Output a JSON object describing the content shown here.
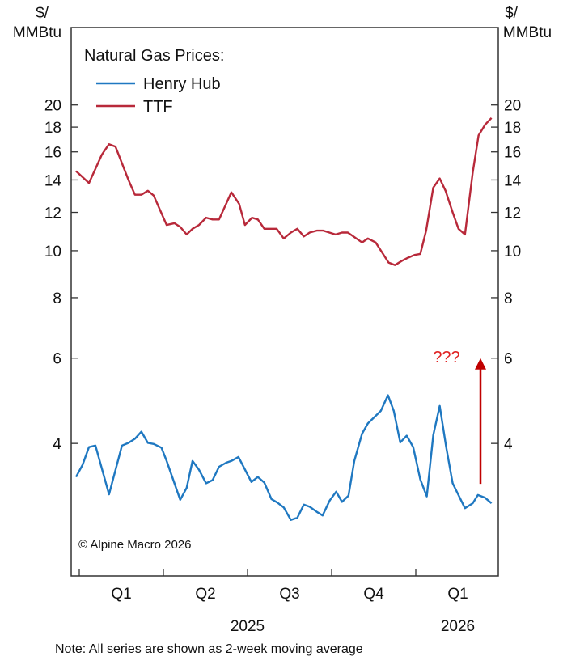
{
  "chart_data": {
    "type": "line",
    "title": "Natural Gas Prices:",
    "ylabel_left": [
      "$/",
      "MMBtu"
    ],
    "ylabel_right": [
      "$/",
      "MMBtu"
    ],
    "yscale": "log",
    "ylim": [
      2.13,
      28.9
    ],
    "yticks": [
      4,
      6,
      8,
      10,
      12,
      14,
      16,
      18,
      20
    ],
    "xunit": "weeks since 2025-01-01",
    "xlim": [
      -1.25,
      64.75
    ],
    "quarter_boundaries": [
      0,
      13,
      26,
      39,
      52
    ],
    "quarter_labels": [
      {
        "label": "Q1",
        "center": 6.5
      },
      {
        "label": "Q2",
        "center": 19.5
      },
      {
        "label": "Q3",
        "center": 32.5
      },
      {
        "label": "Q4",
        "center": 45.5
      },
      {
        "label": "Q1",
        "center": 58.5
      }
    ],
    "year_labels": [
      {
        "label": "2025",
        "center": 26
      },
      {
        "label": "2026",
        "center": 58.5
      }
    ],
    "series": [
      {
        "name": "Henry Hub",
        "color": "#1f78c1",
        "x": [
          -0.5,
          0.5,
          1.5,
          2.5,
          4.6,
          6.6,
          7.6,
          8.6,
          9.6,
          10.6,
          11.5,
          12.7,
          13.5,
          15.6,
          16.6,
          17.5,
          18.5,
          19.6,
          20.6,
          21.6,
          22.7,
          23.5,
          24.6,
          26.6,
          27.6,
          28.6,
          29.7,
          30.6,
          31.6,
          32.7,
          33.7,
          34.7,
          35.6,
          36.7,
          37.6,
          38.7,
          39.7,
          40.6,
          41.6,
          42.5,
          43.7,
          44.6,
          46.6,
          47.7,
          48.6,
          49.6,
          50.6,
          51.6,
          52.7,
          53.7,
          54.7,
          55.7,
          56.7,
          57.7,
          59.6,
          60.8,
          61.6,
          62.7,
          63.7
        ],
        "values": [
          3.41,
          3.61,
          3.93,
          3.96,
          3.14,
          3.96,
          4.01,
          4.09,
          4.23,
          4.01,
          3.99,
          3.92,
          3.68,
          3.06,
          3.24,
          3.68,
          3.53,
          3.31,
          3.36,
          3.58,
          3.65,
          3.68,
          3.75,
          3.33,
          3.41,
          3.32,
          3.07,
          3.02,
          2.95,
          2.78,
          2.81,
          2.99,
          2.96,
          2.89,
          2.84,
          3.05,
          3.18,
          3.03,
          3.12,
          3.68,
          4.19,
          4.4,
          4.67,
          5.03,
          4.67,
          4.02,
          4.15,
          3.93,
          3.37,
          3.11,
          4.16,
          4.78,
          3.93,
          3.31,
          2.94,
          3.01,
          3.13,
          3.09,
          3.01
        ]
      },
      {
        "name": "TTF",
        "color": "#b8293a",
        "x": [
          -0.5,
          1.5,
          3.5,
          4.6,
          5.6,
          7.6,
          8.6,
          9.6,
          10.6,
          11.5,
          13.5,
          14.7,
          15.6,
          16.6,
          17.5,
          18.5,
          19.6,
          20.6,
          21.6,
          23.5,
          24.7,
          25.6,
          26.7,
          27.6,
          28.6,
          30.5,
          31.6,
          32.7,
          33.7,
          34.7,
          35.6,
          36.7,
          37.7,
          39.6,
          40.6,
          41.5,
          43.7,
          44.6,
          45.8,
          47.8,
          48.8,
          49.8,
          50.8,
          51.8,
          52.7,
          53.6,
          54.7,
          55.7,
          56.6,
          57.7,
          58.6,
          59.6,
          60.8,
          61.7,
          62.7,
          63.7
        ],
        "values": [
          14.6,
          13.8,
          15.8,
          16.6,
          16.4,
          14.0,
          13.05,
          13.05,
          13.3,
          13.0,
          11.3,
          11.4,
          11.2,
          10.8,
          11.1,
          11.3,
          11.7,
          11.6,
          11.6,
          13.2,
          12.5,
          11.3,
          11.7,
          11.6,
          11.1,
          11.1,
          10.6,
          10.9,
          11.1,
          10.7,
          10.9,
          11.0,
          11.0,
          10.8,
          10.9,
          10.9,
          10.4,
          10.6,
          10.4,
          9.45,
          9.34,
          9.52,
          9.67,
          9.8,
          9.85,
          11.0,
          13.5,
          14.1,
          13.3,
          12.0,
          11.1,
          10.8,
          14.5,
          17.3,
          18.2,
          18.8
        ]
      }
    ],
    "annotation": {
      "text": "???",
      "color": "#e02020",
      "arrow_color": "#c00000",
      "arrow_x": 62.0,
      "arrow_from": 3.3,
      "arrow_to": 6.0
    },
    "legend_placement": "top-left",
    "grid": false,
    "copyright": "© Alpine Macro 2026",
    "note": "Note: All series are shown as 2-week moving average"
  }
}
